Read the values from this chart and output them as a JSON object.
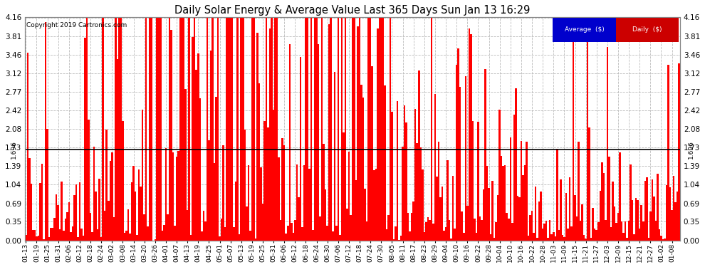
{
  "title": "Daily Solar Energy & Average Value Last 365 Days Sun Jan 13 16:29",
  "copyright": "Copyright 2019 Cartronics.com",
  "average_value": 1.696,
  "average_label": "1.696",
  "bar_color": "#ff0000",
  "average_line_color": "#000000",
  "background_color": "#ffffff",
  "grid_color": "#bbbbbb",
  "ylim": [
    0.0,
    4.16
  ],
  "yticks": [
    0.0,
    0.35,
    0.69,
    1.04,
    1.39,
    1.73,
    2.08,
    2.42,
    2.77,
    3.12,
    3.46,
    3.81,
    4.16
  ],
  "legend_average_color": "#0000cc",
  "legend_daily_color": "#cc0000",
  "legend_text_color": "#ffffff",
  "x_tick_labels": [
    "01-13",
    "01-19",
    "01-25",
    "01-31",
    "02-06",
    "02-12",
    "02-18",
    "02-24",
    "03-02",
    "03-08",
    "03-14",
    "03-20",
    "03-26",
    "04-01",
    "04-07",
    "04-13",
    "04-19",
    "04-25",
    "05-01",
    "05-07",
    "05-13",
    "05-19",
    "05-25",
    "05-31",
    "06-06",
    "06-12",
    "06-18",
    "06-24",
    "06-30",
    "07-06",
    "07-12",
    "07-18",
    "07-24",
    "07-30",
    "08-05",
    "08-11",
    "08-17",
    "08-23",
    "08-29",
    "09-04",
    "09-10",
    "09-16",
    "09-22",
    "09-28",
    "10-04",
    "10-10",
    "10-16",
    "10-22",
    "10-28",
    "11-03",
    "11-09",
    "11-15",
    "11-21",
    "11-27",
    "12-03",
    "12-09",
    "12-15",
    "12-21",
    "12-27",
    "01-02",
    "01-08"
  ],
  "num_bars": 365,
  "figsize": [
    9.9,
    3.75
  ],
  "dpi": 100
}
